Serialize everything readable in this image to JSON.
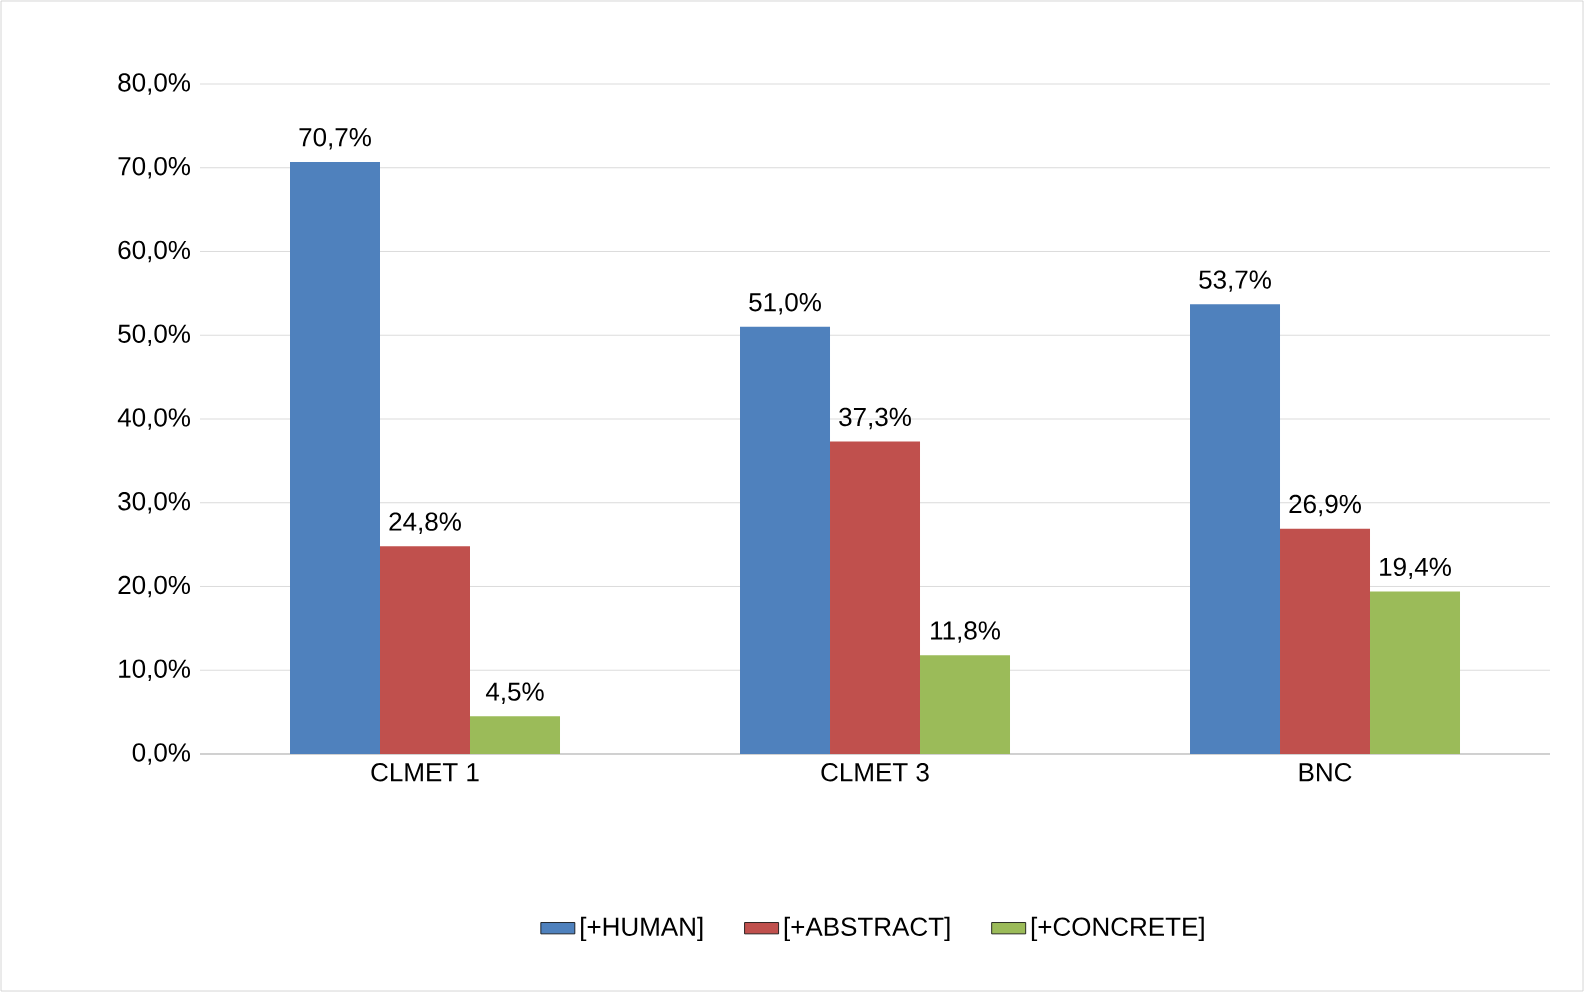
{
  "chart_data": {
    "type": "bar",
    "categories": [
      "CLMET 1",
      "CLMET 3",
      "BNC"
    ],
    "series": [
      {
        "name": "[+HUMAN]",
        "color": "#4f81bd",
        "values": [
          70.7,
          51.0,
          53.7
        ],
        "value_labels": [
          "70,7%",
          "51,0%",
          "53,7%"
        ]
      },
      {
        "name": "[+ABSTRACT]",
        "color": "#c0504d",
        "values": [
          24.8,
          37.3,
          26.9
        ],
        "value_labels": [
          "24,8%",
          "37,3%",
          "26,9%"
        ]
      },
      {
        "name": "[+CONCRETE]",
        "color": "#9bbb59",
        "values": [
          4.5,
          11.8,
          19.4
        ],
        "value_labels": [
          "4,5%",
          "11,8%",
          "19,4%"
        ]
      }
    ],
    "ylim": [
      0,
      80
    ],
    "yticks": [
      {
        "value": 0,
        "label": "0,0%"
      },
      {
        "value": 10,
        "label": "10,0%"
      },
      {
        "value": 20,
        "label": "20,0%"
      },
      {
        "value": 30,
        "label": "30,0%"
      },
      {
        "value": 40,
        "label": "40,0%"
      },
      {
        "value": 50,
        "label": "50,0%"
      },
      {
        "value": 60,
        "label": "60,0%"
      },
      {
        "value": 70,
        "label": "70,0%"
      },
      {
        "value": 80,
        "label": "80,0%"
      }
    ],
    "grid": "y",
    "legend": "bottom"
  }
}
